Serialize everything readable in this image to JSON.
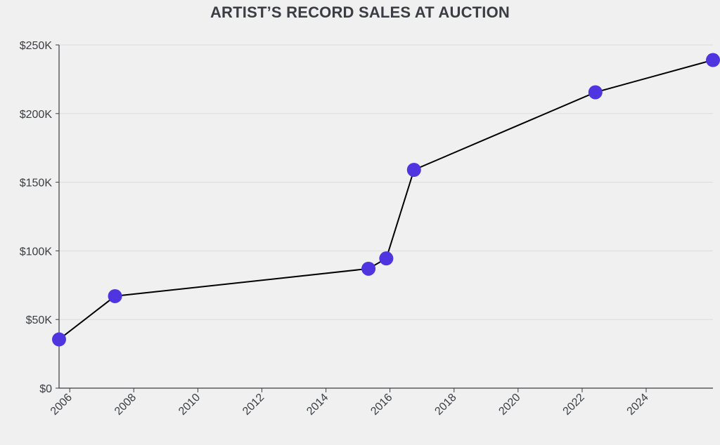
{
  "chart_data": {
    "type": "line",
    "title": "ARTIST’S RECORD SALES AT AUCTION",
    "xlabel": "",
    "ylabel": "",
    "x_is_date": true,
    "xlim": [
      "2005-09-01",
      "2026-02-01"
    ],
    "ylim": [
      0,
      250000
    ],
    "y_ticks": [
      {
        "value": 0,
        "label": "$0"
      },
      {
        "value": 50000,
        "label": "$50K"
      },
      {
        "value": 100000,
        "label": "$100K"
      },
      {
        "value": 150000,
        "label": "$150K"
      },
      {
        "value": 200000,
        "label": "$200K"
      },
      {
        "value": 250000,
        "label": "$250K"
      }
    ],
    "x_ticks": [
      {
        "value": "2006-01-01",
        "label": "2006"
      },
      {
        "value": "2008-01-01",
        "label": "2008"
      },
      {
        "value": "2010-01-01",
        "label": "2010"
      },
      {
        "value": "2012-01-01",
        "label": "2012"
      },
      {
        "value": "2014-01-01",
        "label": "2014"
      },
      {
        "value": "2016-01-01",
        "label": "2016"
      },
      {
        "value": "2018-01-01",
        "label": "2018"
      },
      {
        "value": "2020-01-01",
        "label": "2020"
      },
      {
        "value": "2022-01-01",
        "label": "2022"
      },
      {
        "value": "2024-01-01",
        "label": "2024"
      }
    ],
    "grid": {
      "horizontal": true,
      "vertical": false
    },
    "series": [
      {
        "line_color": "#000000",
        "marker_color": "#4f35e0",
        "points": [
          {
            "x": "2005-09-01",
            "y": 35500
          },
          {
            "x": "2007-06-01",
            "y": 67000
          },
          {
            "x": "2015-05-01",
            "y": 87000
          },
          {
            "x": "2015-11-20",
            "y": 94500
          },
          {
            "x": "2016-10-01",
            "y": 159000
          },
          {
            "x": "2022-06-01",
            "y": 215500
          },
          {
            "x": "2026-02-01",
            "y": 239000
          }
        ]
      }
    ]
  },
  "colors": {
    "background": "#f0f0f0",
    "grid": "#dcdcdc",
    "axis": "#3a3d42",
    "text": "#3a3d42"
  }
}
